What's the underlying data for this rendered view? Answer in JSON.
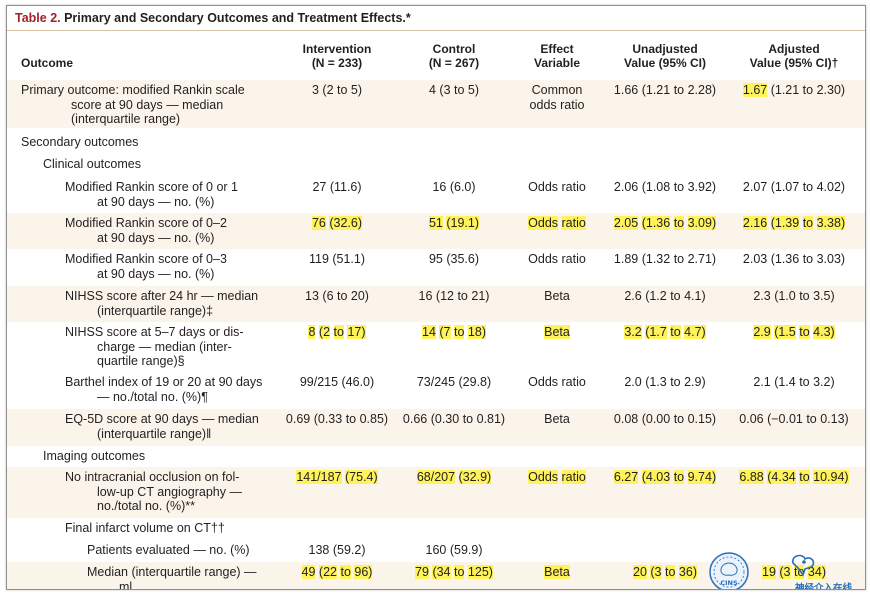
{
  "table": {
    "label": "Table 2.",
    "title": " Primary and Secondary Outcomes and Treatment Effects.*",
    "headers": {
      "outcome": "Outcome",
      "intervention": [
        "Intervention",
        "(N = 233)"
      ],
      "control": [
        "Control",
        "(N = 267)"
      ],
      "effect": [
        "Effect",
        "Variable"
      ],
      "unadjusted": [
        "Unadjusted",
        "Value (95% CI)"
      ],
      "adjusted": [
        "Adjusted",
        "Value (95% CI)†"
      ]
    },
    "rows": [
      {
        "outcome": [
          "Primary outcome: modified Rankin scale",
          "score at 90 days — median",
          "(interquartile range)"
        ],
        "intervention": "3 (2 to 5)",
        "control": "4 (3 to 5)",
        "effect": [
          "Common",
          "odds ratio"
        ],
        "unadjusted": "1.66 (1.21 to 2.28)",
        "adjusted_hl": "1.67",
        "adjusted_rest": " (1.21 to 2.30)"
      },
      {
        "outcome": [
          "Secondary outcomes"
        ]
      },
      {
        "outcome": [
          "Clinical outcomes"
        ]
      },
      {
        "outcome": [
          "Modified Rankin score of 0 or 1",
          "at 90 days — no. (%)"
        ],
        "intervention": "27 (11.6)",
        "control": "16 (6.0)",
        "effect": [
          "Odds ratio"
        ],
        "unadjusted": "2.06 (1.08 to 3.92)",
        "adjusted": "2.07 (1.07 to 4.02)"
      },
      {
        "outcome": [
          "Modified Rankin score of 0–2",
          "at 90 days — no. (%)"
        ],
        "intervention": "76 (32.6)",
        "control": "51 (19.1)",
        "effect": [
          "Odds ratio"
        ],
        "unadjusted": "2.05 (1.36 to 3.09)",
        "adjusted": "2.16 (1.39 to 3.38)"
      },
      {
        "outcome": [
          "Modified Rankin score of 0–3",
          "at 90 days — no. (%)"
        ],
        "intervention": "119 (51.1)",
        "control": "95 (35.6)",
        "effect": [
          "Odds ratio"
        ],
        "unadjusted": "1.89 (1.32 to 2.71)",
        "adjusted": "2.03 (1.36 to 3.03)"
      },
      {
        "outcome": [
          "NIHSS score after 24 hr — median",
          "(interquartile range)‡"
        ],
        "intervention": "13 (6 to 20)",
        "control": "16 (12 to 21)",
        "effect": [
          "Beta"
        ],
        "unadjusted": "2.6 (1.2 to 4.1)",
        "adjusted": "2.3 (1.0 to 3.5)"
      },
      {
        "outcome": [
          "NIHSS score at 5–7 days or dis-",
          "charge — median (inter-",
          "quartile range)§"
        ],
        "intervention": "8 (2 to 17)",
        "control": "14 (7 to 18)",
        "effect": [
          "Beta"
        ],
        "unadjusted": "3.2 (1.7 to 4.7)",
        "adjusted": "2.9 (1.5 to 4.3)"
      },
      {
        "outcome": [
          "Barthel index of 19 or 20 at 90 days",
          "— no./total no. (%)¶"
        ],
        "intervention": "99/215 (46.0)",
        "control": "73/245 (29.8)",
        "effect": [
          "Odds ratio"
        ],
        "unadjusted": "2.0 (1.3 to 2.9)",
        "adjusted": "2.1 (1.4 to 3.2)"
      },
      {
        "outcome": [
          "EQ-5D score at 90 days — median",
          "(interquartile range)‖"
        ],
        "intervention": "0.69 (0.33 to 0.85)",
        "control": "0.66 (0.30 to 0.81)",
        "effect": [
          "Beta"
        ],
        "unadjusted": "0.08 (0.00 to 0.15)",
        "adjusted": "0.06 (−0.01 to 0.13)"
      },
      {
        "outcome": [
          "Imaging outcomes"
        ]
      },
      {
        "outcome": [
          "No intracranial occlusion on fol-",
          "low-up CT angiography —",
          "no./total no. (%)**"
        ],
        "intervention": "141/187 (75.4)",
        "control": "68/207 (32.9)",
        "effect": [
          "Odds ratio"
        ],
        "unadjusted": "6.27 (4.03 to 9.74)",
        "adjusted": "6.88 (4.34 to 10.94)"
      },
      {
        "outcome": [
          "Final infarct volume on CT††"
        ]
      },
      {
        "outcome": [
          "Patients evaluated — no. (%)"
        ],
        "intervention": "138 (59.2)",
        "control": "160 (59.9)"
      },
      {
        "outcome": [
          "Median (interquartile range) —",
          "ml"
        ],
        "intervention": "49 (22 to 96)",
        "control": "79 (34 to 125)",
        "effect": [
          "Beta"
        ],
        "unadjusted": "20 (3 to 36)",
        "adjusted": "19 (3 to 34)"
      }
    ]
  },
  "watermark": {
    "badge_text": "CINS",
    "brand_text": "神经介入在线"
  },
  "colors": {
    "highlight": "#fff35c",
    "band": "#fbf4ea",
    "title_red": "#a0212b",
    "watermark_blue": "#2a6fb8"
  }
}
